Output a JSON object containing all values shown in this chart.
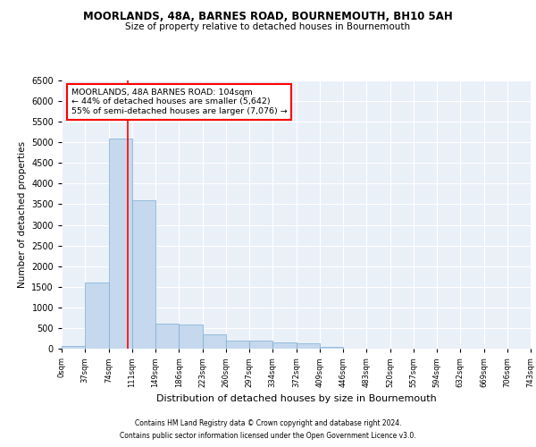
{
  "title1": "MOORLANDS, 48A, BARNES ROAD, BOURNEMOUTH, BH10 5AH",
  "title2": "Size of property relative to detached houses in Bournemouth",
  "xlabel": "Distribution of detached houses by size in Bournemouth",
  "ylabel": "Number of detached properties",
  "bar_color": "#c5d8ed",
  "bar_edge_color": "#7aadd4",
  "bar_values": [
    60,
    1600,
    5100,
    3600,
    600,
    590,
    350,
    200,
    200,
    150,
    120,
    50,
    10,
    0,
    0,
    0,
    0,
    0,
    0,
    0
  ],
  "bin_labels": [
    "0sqm",
    "37sqm",
    "74sqm",
    "111sqm",
    "149sqm",
    "186sqm",
    "223sqm",
    "260sqm",
    "297sqm",
    "334sqm",
    "372sqm",
    "409sqm",
    "446sqm",
    "483sqm",
    "520sqm",
    "557sqm",
    "594sqm",
    "632sqm",
    "669sqm",
    "706sqm",
    "743sqm"
  ],
  "ylim": [
    0,
    6500
  ],
  "yticks": [
    0,
    500,
    1000,
    1500,
    2000,
    2500,
    3000,
    3500,
    4000,
    4500,
    5000,
    5500,
    6000,
    6500
  ],
  "red_line_x": 2.81,
  "annotation_text": "MOORLANDS, 48A BARNES ROAD: 104sqm\n← 44% of detached houses are smaller (5,642)\n55% of semi-detached houses are larger (7,076) →",
  "annotation_box_color": "white",
  "annotation_box_edge": "red",
  "footnote1": "Contains HM Land Registry data © Crown copyright and database right 2024.",
  "footnote2": "Contains public sector information licensed under the Open Government Licence v3.0.",
  "background_color": "#eaf0f8",
  "grid_color": "white"
}
